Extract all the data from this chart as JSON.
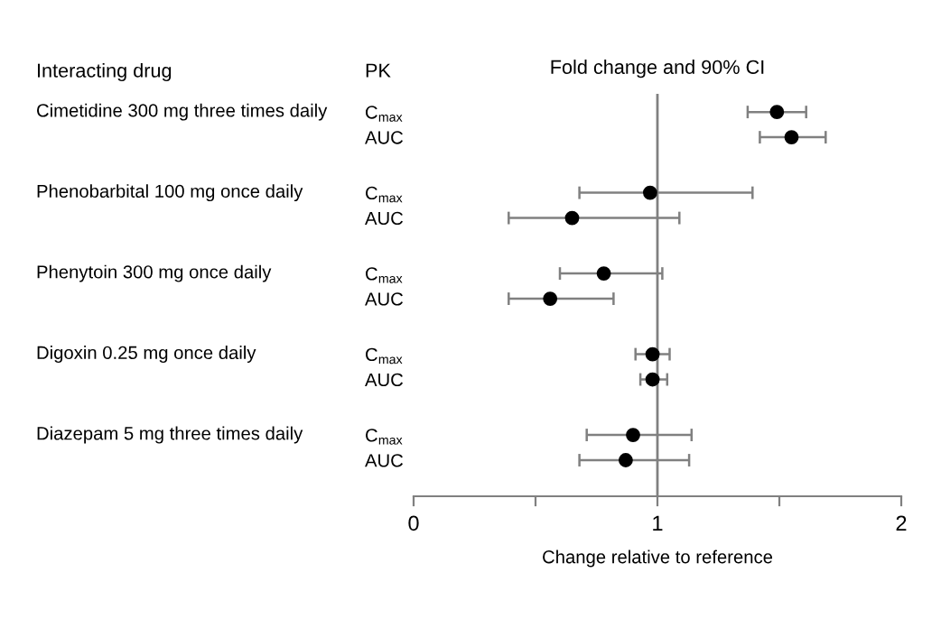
{
  "chart_data": {
    "type": "scatter",
    "orientation": "horizontal",
    "title": "Fold change and 90% CI",
    "xlabel": "Change relative to reference",
    "annotations": [
      "Interacting drug",
      "PK",
      "Cimetidine 300 mg three times daily",
      "Phenobarbital 100 mg once daily",
      "Phenytoin 300 mg once daily",
      "Digoxin 0.25 mg once daily",
      "Diazepam 5 mg three times daily"
    ],
    "categories": [
      "C$_{max}$",
      "AUC",
      "C$_{max}$",
      "AUC",
      "C$_{max}$",
      "AUC",
      "C$_{max}$",
      "AUC",
      "C$_{max}$",
      "AUC"
    ],
    "series": [
      {
        "color": "#000000",
        "values": [
          1.49,
          1.55,
          0.97,
          0.65,
          0.78,
          0.56,
          0.98,
          0.98,
          0.9,
          0.87
        ],
        "errors": [
          [
            1.37,
            1.61
          ],
          [
            1.42,
            1.69
          ],
          [
            0.68,
            1.39
          ],
          [
            0.39,
            1.09
          ],
          [
            0.6,
            1.02
          ],
          [
            0.39,
            0.82
          ],
          [
            0.91,
            1.05
          ],
          [
            0.93,
            1.04
          ],
          [
            0.71,
            1.14
          ],
          [
            0.68,
            1.13
          ]
        ]
      }
    ],
    "ref_lines": [
      {
        "axis": "x",
        "value": 1,
        "label": null,
        "color": "#808080"
      }
    ],
    "marker": "circle",
    "xlim": [
      0,
      2
    ],
    "xticks": [
      0,
      {
        "value": 0.5,
        "label": null
      },
      1,
      {
        "value": 1.5,
        "label": null
      },
      2
    ],
    "grid": false
  }
}
